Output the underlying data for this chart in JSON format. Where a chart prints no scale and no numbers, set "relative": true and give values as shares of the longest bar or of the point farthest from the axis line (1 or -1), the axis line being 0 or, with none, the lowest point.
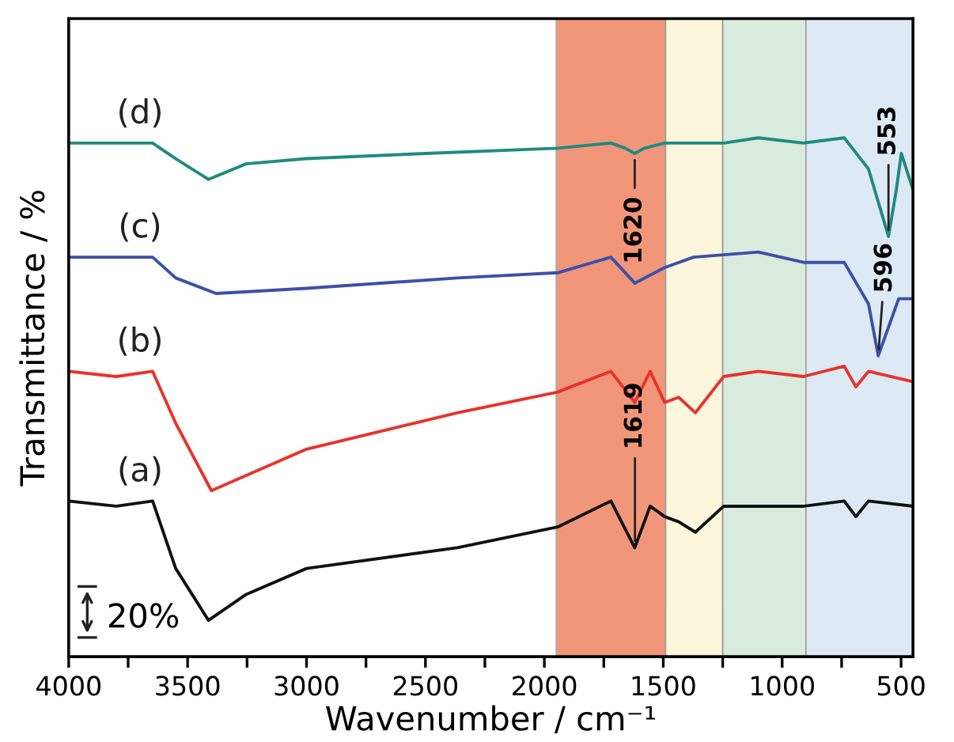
{
  "chart_data": {
    "type": "line",
    "relative": true,
    "xlabel": "Wavenumber / cm⁻¹",
    "ylabel": "Transmittance / %",
    "xlim": [
      4000,
      450
    ],
    "xticks": [
      4000,
      {
        "value": 3750,
        "label": null
      },
      3500,
      {
        "value": 3250,
        "label": null
      },
      3000,
      {
        "value": 2750,
        "label": null
      },
      2500,
      {
        "value": 2250,
        "label": null
      },
      2000,
      {
        "value": 1750,
        "label": null
      },
      1500,
      {
        "value": 1250,
        "label": null
      },
      1000,
      {
        "value": 750,
        "label": null
      },
      500
    ],
    "tick_labels": "x",
    "bands": [
      {
        "axis": "x",
        "from": 1950,
        "to": 1490,
        "color": "#f08462"
      },
      {
        "axis": "x",
        "from": 1490,
        "to": 1250,
        "color": "#fcf6d6"
      },
      {
        "axis": "x",
        "from": 1250,
        "to": 900,
        "color": "#d3e8d6"
      },
      {
        "axis": "x",
        "from": 900,
        "to": 450,
        "color": "#d8e7f5"
      }
    ],
    "series": [
      {
        "name": "(a)",
        "color": "#111111",
        "x": [
          4000,
          3800,
          3647,
          3550,
          3412,
          3254,
          3000,
          2366,
          1944,
          1720,
          1620,
          1555,
          1494,
          1435,
          1365,
          1246,
          1100,
          910,
          739,
          690,
          637,
          450
        ],
        "values": [
          0.3,
          0.29,
          0.3,
          0.17,
          0.07,
          0.12,
          0.17,
          0.21,
          0.25,
          0.3,
          0.21,
          0.29,
          0.27,
          0.26,
          0.24,
          0.29,
          0.29,
          0.29,
          0.3,
          0.27,
          0.3,
          0.29
        ]
      },
      {
        "name": "(b)",
        "color": "#e8332a",
        "x": [
          4000,
          3800,
          3647,
          3550,
          3400,
          3000,
          2366,
          1944,
          1720,
          1620,
          1555,
          1494,
          1435,
          1365,
          1246,
          1100,
          910,
          739,
          690,
          637,
          450
        ],
        "values": [
          0.55,
          0.54,
          0.55,
          0.45,
          0.32,
          0.4,
          0.47,
          0.51,
          0.55,
          0.49,
          0.55,
          0.49,
          0.5,
          0.47,
          0.54,
          0.55,
          0.54,
          0.56,
          0.52,
          0.55,
          0.53
        ]
      },
      {
        "name": "(c)",
        "color": "#3b50a8",
        "x": [
          4000,
          3647,
          3550,
          3380,
          3000,
          2366,
          1944,
          1720,
          1620,
          1494,
          1373,
          1100,
          910,
          739,
          637,
          596,
          510,
          450
        ],
        "values": [
          0.77,
          0.77,
          0.73,
          0.7,
          0.71,
          0.73,
          0.74,
          0.77,
          0.72,
          0.75,
          0.77,
          0.78,
          0.76,
          0.76,
          0.68,
          0.58,
          0.69,
          0.69
        ]
      },
      {
        "name": "(d)",
        "color": "#1f8a80",
        "x": [
          4000,
          3647,
          3550,
          3412,
          3254,
          3000,
          2500,
          1944,
          1720,
          1660,
          1620,
          1580,
          1494,
          1373,
          1246,
          1100,
          910,
          739,
          637,
          553,
          520,
          499,
          450
        ],
        "values": [
          0.99,
          0.99,
          0.96,
          0.92,
          0.95,
          0.96,
          0.97,
          0.98,
          0.99,
          0.98,
          0.97,
          0.98,
          0.99,
          0.99,
          0.99,
          1.0,
          0.99,
          1.0,
          0.94,
          0.81,
          0.9,
          0.97,
          0.9
        ]
      }
    ],
    "annotations": [
      {
        "text": "1619",
        "x": 1619,
        "y": 0.21
      },
      {
        "text": "1620",
        "x": 1620,
        "y": 0.97
      },
      {
        "text": "596",
        "x": 596,
        "y": 0.58
      },
      {
        "text": "553",
        "x": 553,
        "y": 0.81
      },
      "20%"
    ]
  }
}
